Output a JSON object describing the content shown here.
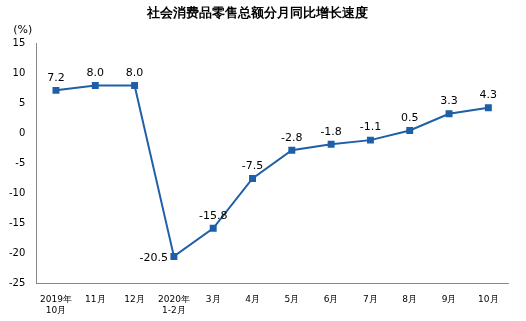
{
  "chart_data": {
    "type": "line",
    "title": "社会消费品零售总额分月同比增长速度",
    "y_label": "(%)",
    "categories": [
      "2019年\n10月",
      "11月",
      "12月",
      "2020年\n1-2月",
      "3月",
      "4月",
      "5月",
      "6月",
      "7月",
      "8月",
      "9月",
      "10月"
    ],
    "values": [
      7.2,
      8.0,
      8.0,
      -20.5,
      -15.8,
      -7.5,
      -2.8,
      -1.8,
      -1.1,
      0.5,
      3.3,
      4.3
    ],
    "value_labels": [
      "7.2",
      "8.0",
      "8.0",
      "-20.5",
      "-15.8",
      "-7.5",
      "-2.8",
      "-1.8",
      "-1.1",
      "0.5",
      "3.3",
      "4.3"
    ],
    "color": "#1f5fa8",
    "marker": "square",
    "line_style": "solid",
    "ylim": [
      -25,
      15
    ],
    "yticks": [
      -25,
      -20,
      -15,
      -10,
      -5,
      0,
      5,
      10,
      15
    ],
    "grid": false,
    "data_labels": true
  }
}
